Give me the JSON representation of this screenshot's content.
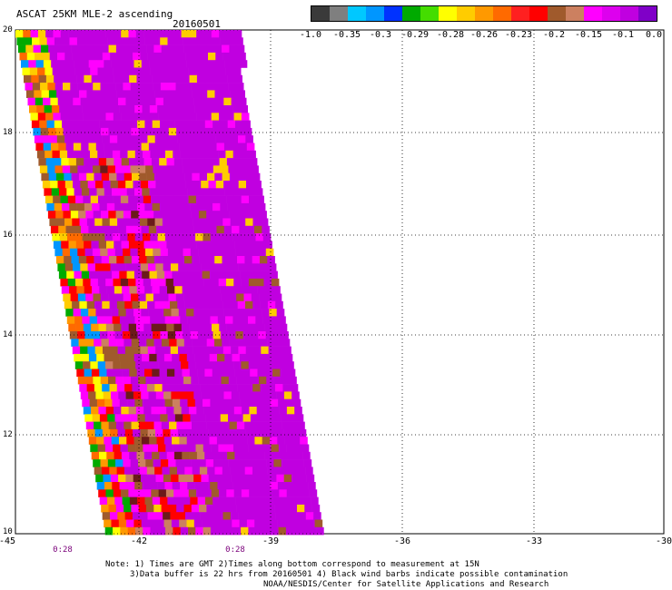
{
  "title": "ASCAT 25KM MLE-2 ascending",
  "date": "20160501",
  "colorbar": {
    "colors": [
      "#3a3a3a",
      "#7f7f7f",
      "#00c8ff",
      "#0096ff",
      "#0032ff",
      "#00aa00",
      "#44dd00",
      "#ffff00",
      "#ffcc00",
      "#ff9900",
      "#ff6a00",
      "#ff2020",
      "#ff0000",
      "#a05a2c",
      "#cc8060",
      "#ff00ff",
      "#dd00ee",
      "#c000e0",
      "#8000c8"
    ],
    "labels": [
      "-1.0",
      "-0.35",
      "-0.3",
      "-0.29",
      "-0.28",
      "-0.26",
      "-0.23",
      "-0.2",
      "-0.15",
      "-0.1",
      "0.0"
    ]
  },
  "y_labels": [
    "20",
    "18",
    "16",
    "14",
    "12",
    "10"
  ],
  "x_labels": [
    "-45",
    "-42",
    "-39",
    "-36",
    "-33",
    "-30"
  ],
  "time_labels": [
    "0:28",
    "0:28"
  ],
  "notes": [
    "Note: 1) Times are GMT 2)Times along bottom correspond to measurement at 15N",
    "3)Data buffer is 22 hrs from 20160501 4) Black wind barbs indicate possible contamination",
    "NOAA/NESDIS/Center for Satellite Applications and Research"
  ]
}
